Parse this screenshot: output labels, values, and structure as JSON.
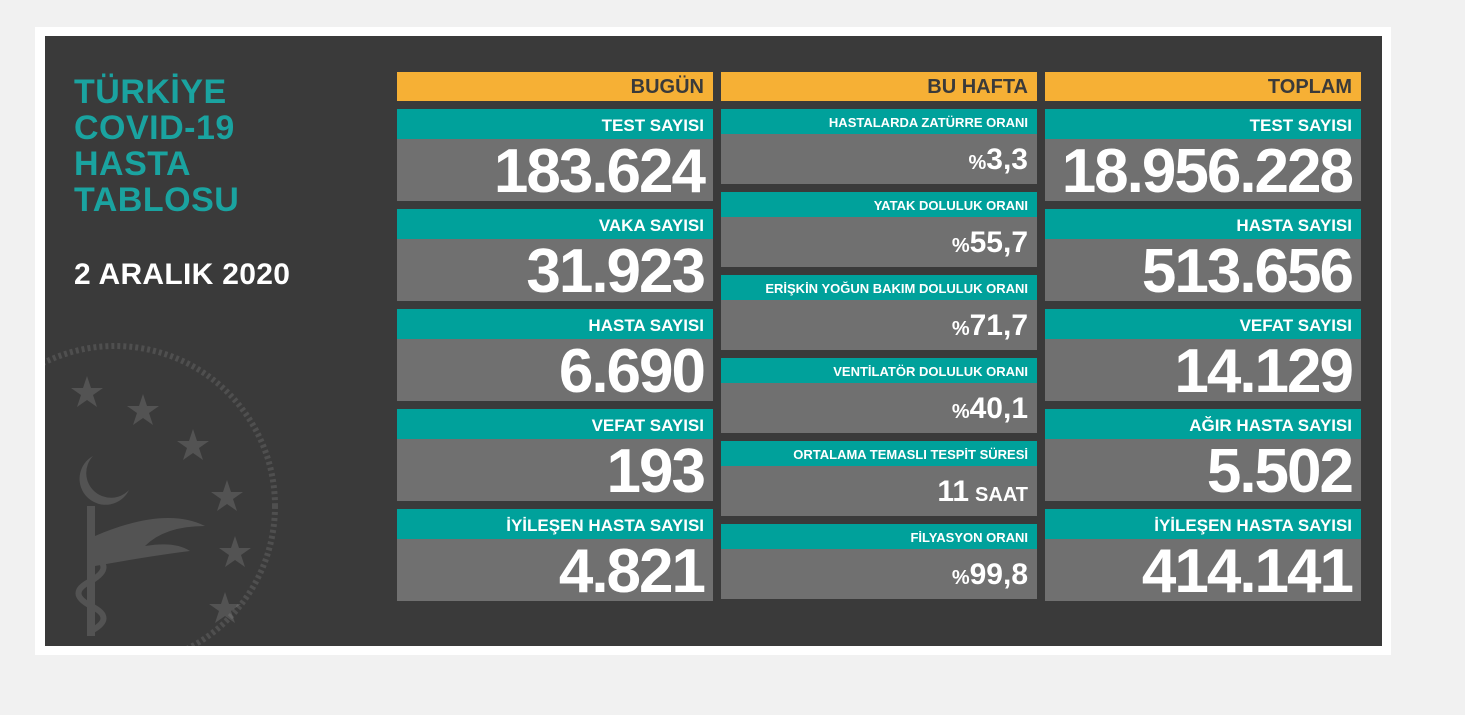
{
  "title": {
    "lines": [
      "TÜRKİYE",
      "COVID-19",
      "HASTA",
      "TABLOSU"
    ]
  },
  "date": "2 ARALIK 2020",
  "today": {
    "header": "BUGÜN",
    "stats": [
      {
        "label": "TEST SAYISI",
        "value": "183.624"
      },
      {
        "label": "VAKA SAYISI",
        "value": "31.923"
      },
      {
        "label": "HASTA SAYISI",
        "value": "6.690"
      },
      {
        "label": "VEFAT SAYISI",
        "value": "193"
      },
      {
        "label": "İYİLEŞEN HASTA SAYISI",
        "value": "4.821"
      }
    ]
  },
  "week": {
    "header": "BU HAFTA",
    "stats": [
      {
        "label": "HASTALARDA ZATÜRRE ORANI",
        "prefix": "%",
        "value": "3,3",
        "unit": ""
      },
      {
        "label": "YATAK DOLULUK ORANI",
        "prefix": "%",
        "value": "55,7",
        "unit": ""
      },
      {
        "label": "ERİŞKİN YOĞUN BAKIM DOLULUK ORANI",
        "prefix": "%",
        "value": "71,7",
        "unit": ""
      },
      {
        "label": "VENTİLATÖR DOLULUK ORANI",
        "prefix": "%",
        "value": "40,1",
        "unit": ""
      },
      {
        "label": "ORTALAMA TEMASLI TESPİT SÜRESİ",
        "prefix": "",
        "value": "11",
        "unit": "SAAT"
      },
      {
        "label": "FİLYASYON ORANI",
        "prefix": "%",
        "value": "99,8",
        "unit": ""
      }
    ]
  },
  "total": {
    "header": "TOPLAM",
    "stats": [
      {
        "label": "TEST SAYISI",
        "value": "18.956.228"
      },
      {
        "label": "HASTA SAYISI",
        "value": "513.656"
      },
      {
        "label": "VEFAT SAYISI",
        "value": "14.129"
      },
      {
        "label": "AĞIR HASTA SAYISI",
        "value": "5.502"
      },
      {
        "label": "İYİLEŞEN HASTA SAYISI",
        "value": "414.141"
      }
    ]
  },
  "colors": {
    "panel": "#3a3a3a",
    "teal": "#00a19b",
    "orange": "#f6b035",
    "value_bg": "#707070",
    "title": "#1aa3a0"
  },
  "icons": [
    "ministry-emblem-icon",
    "star-icon",
    "crescent-icon",
    "caduceus-icon"
  ]
}
